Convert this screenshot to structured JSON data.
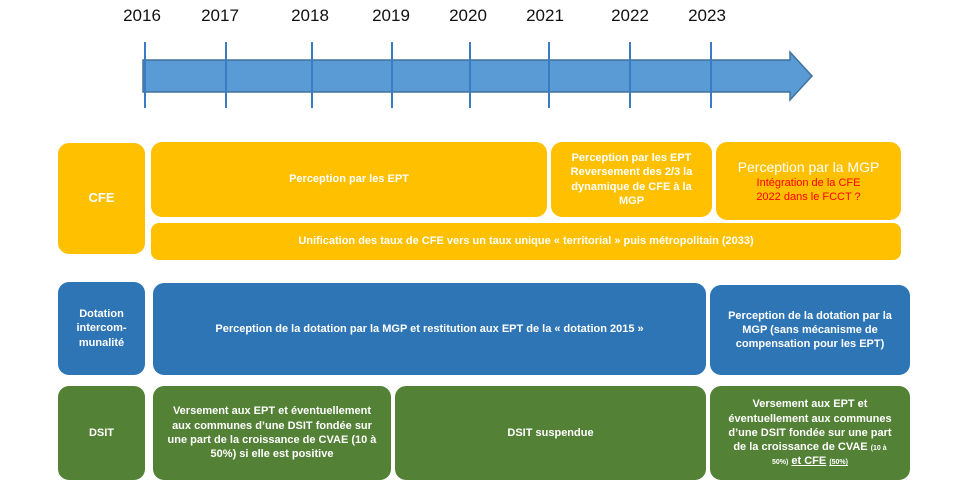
{
  "timeline": {
    "years": [
      "2016",
      "2017",
      "2018",
      "2019",
      "2020",
      "2021",
      "2022",
      "2023"
    ]
  },
  "colors": {
    "cfe": "#ffc000",
    "dotation": "#2e75b6",
    "dsit": "#538135",
    "arrow": "#5b9bd5",
    "highlight": "#ff0000"
  },
  "cfe": {
    "label": "CFE",
    "period1": "Perception par les EPT",
    "period2": "Perception par les EPT Reversement des 2/3  la dynamique de CFE à la MGP",
    "period3_title": "Perception par la MGP",
    "period3_note": "Intégration de la CFE 2022 dans le FCCT ?",
    "unification": "Unification des taux de CFE vers un taux unique « territorial » puis métropolitain (2033)"
  },
  "dotation": {
    "label": "Dotation intercom-munalité",
    "period1": "Perception de la dotation par la MGP et restitution aux EPT de la « dotation 2015 »",
    "period2": "Perception de la dotation par la MGP (sans mécanisme de compensation pour les EPT)"
  },
  "dsit": {
    "label": "DSIT",
    "period1": "Versement aux EPT et éventuellement aux communes d’une DSIT fondée sur une part de la croissance de CVAE (10 à 50%) si elle est positive",
    "period2": "DSIT suspendue",
    "period3_main": "Versement aux EPT et éventuellement aux communes d’une DSIT fondée sur une part de la croissance de CVAE",
    "period3_cvae_pct": "(10 à 50%)",
    "period3_and_cfe": "et CFE",
    "period3_cfe_pct": "(50%)"
  }
}
